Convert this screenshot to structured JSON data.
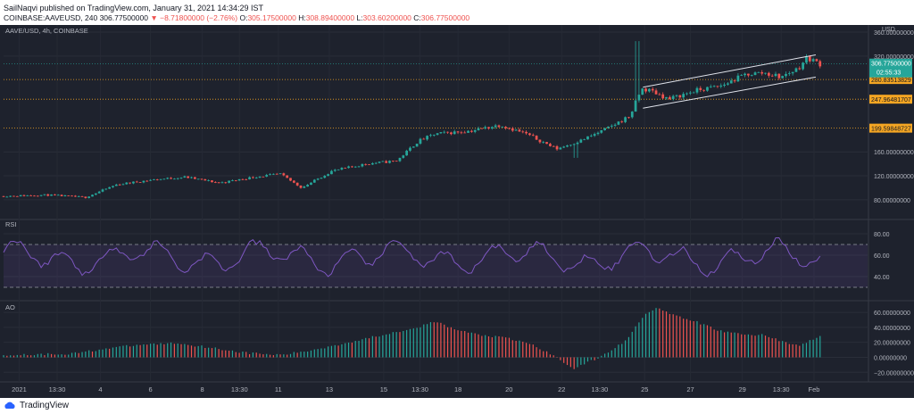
{
  "header": {
    "publisher": "SailNaqvi published on TradingView.com, January 31, 2021 14:34:29 IST",
    "symbol": "COINBASE:AAVEUSD, 240",
    "last": "306.77500000",
    "change_arrow": "▼",
    "change": "−8.71800000 (−2.76%)",
    "o_label": "O:",
    "o": "305.17500000",
    "h_label": "H:",
    "h": "308.89400000",
    "l_label": "L:",
    "l": "303.60200000",
    "c_label": "C:",
    "c": "306.77500000"
  },
  "footer": {
    "brand": "TradingView"
  },
  "colors": {
    "background": "#1e222d",
    "bull": "#26a69a",
    "bear": "#ef5350",
    "rsi": "#7e57c2",
    "level": "#f5a623",
    "price_tag": "#26a69a"
  },
  "chart_data": [
    {
      "type": "candlestick",
      "legend": "AAVE/USD, 4h, COINBASE",
      "currency": "USD",
      "ylim": [
        50,
        360
      ],
      "yticks": [
        {
          "v": 360,
          "label": "360.00000000"
        },
        {
          "v": 320,
          "label": "320.00000000"
        },
        {
          "v": 160,
          "label": "160.00000000"
        },
        {
          "v": 120,
          "label": "120.00000000"
        },
        {
          "v": 80,
          "label": "80.00000000"
        }
      ],
      "last_price": {
        "value": 306.775,
        "label": "306.77500000",
        "countdown": "02:55:33"
      },
      "levels": [
        {
          "value": 280.83513829,
          "label": "280.83513829"
        },
        {
          "value": 247.96481707,
          "label": "247.96481707"
        },
        {
          "value": 199.59848727,
          "label": "199.59848727"
        }
      ],
      "channel": {
        "upper": [
          [
            0.74,
            268
          ],
          [
            0.94,
            322
          ]
        ],
        "lower": [
          [
            0.74,
            233
          ],
          [
            0.94,
            285
          ]
        ]
      },
      "anchors": [
        [
          0.0,
          86
        ],
        [
          0.05,
          88
        ],
        [
          0.095,
          84
        ],
        [
          0.13,
          105
        ],
        [
          0.17,
          113
        ],
        [
          0.21,
          118
        ],
        [
          0.25,
          108
        ],
        [
          0.29,
          118
        ],
        [
          0.32,
          123
        ],
        [
          0.345,
          100
        ],
        [
          0.38,
          128
        ],
        [
          0.42,
          140
        ],
        [
          0.455,
          145
        ],
        [
          0.48,
          178
        ],
        [
          0.5,
          190
        ],
        [
          0.54,
          195
        ],
        [
          0.575,
          205
        ],
        [
          0.605,
          190
        ],
        [
          0.64,
          165
        ],
        [
          0.67,
          180
        ],
        [
          0.7,
          200
        ],
        [
          0.725,
          220
        ],
        [
          0.738,
          265
        ],
        [
          0.75,
          262
        ],
        [
          0.77,
          248
        ],
        [
          0.8,
          262
        ],
        [
          0.83,
          270
        ],
        [
          0.86,
          290
        ],
        [
          0.88,
          292
        ],
        [
          0.9,
          285
        ],
        [
          0.92,
          300
        ],
        [
          0.93,
          318
        ],
        [
          0.945,
          306.775
        ]
      ]
    },
    {
      "type": "line",
      "legend": "RSI",
      "ylim": [
        25,
        90
      ],
      "yticks": [
        {
          "v": 80,
          "label": "80.00"
        },
        {
          "v": 60,
          "label": "60.00"
        },
        {
          "v": 40,
          "label": "40.00"
        }
      ],
      "bands": [
        70,
        30
      ]
    },
    {
      "type": "bar",
      "legend": "AO",
      "ylim": [
        -28,
        72
      ],
      "yticks": [
        {
          "v": 60,
          "label": "60.00000000"
        },
        {
          "v": 40,
          "label": "40.00000000"
        },
        {
          "v": 20,
          "label": "20.00000000"
        },
        {
          "v": 0,
          "label": "0.00000000"
        },
        {
          "v": -20,
          "label": "−20.00000000"
        }
      ],
      "anchors": [
        [
          0.0,
          3
        ],
        [
          0.08,
          5
        ],
        [
          0.12,
          12
        ],
        [
          0.16,
          17
        ],
        [
          0.2,
          19
        ],
        [
          0.24,
          13
        ],
        [
          0.28,
          6
        ],
        [
          0.32,
          3
        ],
        [
          0.35,
          8
        ],
        [
          0.4,
          20
        ],
        [
          0.45,
          33
        ],
        [
          0.485,
          42
        ],
        [
          0.5,
          48
        ],
        [
          0.52,
          38
        ],
        [
          0.55,
          30
        ],
        [
          0.58,
          26
        ],
        [
          0.61,
          18
        ],
        [
          0.64,
          0
        ],
        [
          0.66,
          -15
        ],
        [
          0.69,
          0
        ],
        [
          0.72,
          22
        ],
        [
          0.74,
          55
        ],
        [
          0.755,
          67
        ],
        [
          0.775,
          56
        ],
        [
          0.8,
          48
        ],
        [
          0.83,
          35
        ],
        [
          0.86,
          30
        ],
        [
          0.88,
          30
        ],
        [
          0.9,
          22
        ],
        [
          0.92,
          15
        ],
        [
          0.945,
          28
        ]
      ]
    }
  ],
  "x_axis": {
    "ticks": [
      {
        "f": 0.018,
        "label": "2021"
      },
      {
        "f": 0.062,
        "label": "13:30"
      },
      {
        "f": 0.112,
        "label": "4"
      },
      {
        "f": 0.17,
        "label": "6"
      },
      {
        "f": 0.23,
        "label": "8"
      },
      {
        "f": 0.273,
        "label": "13:30"
      },
      {
        "f": 0.318,
        "label": "11"
      },
      {
        "f": 0.377,
        "label": "13"
      },
      {
        "f": 0.44,
        "label": "15"
      },
      {
        "f": 0.482,
        "label": "13:30"
      },
      {
        "f": 0.526,
        "label": "18"
      },
      {
        "f": 0.585,
        "label": "20"
      },
      {
        "f": 0.646,
        "label": "22"
      },
      {
        "f": 0.69,
        "label": "13:30"
      },
      {
        "f": 0.742,
        "label": "25"
      },
      {
        "f": 0.795,
        "label": "27"
      },
      {
        "f": 0.855,
        "label": "29"
      },
      {
        "f": 0.9,
        "label": "13:30"
      },
      {
        "f": 0.938,
        "label": "Feb"
      }
    ]
  }
}
